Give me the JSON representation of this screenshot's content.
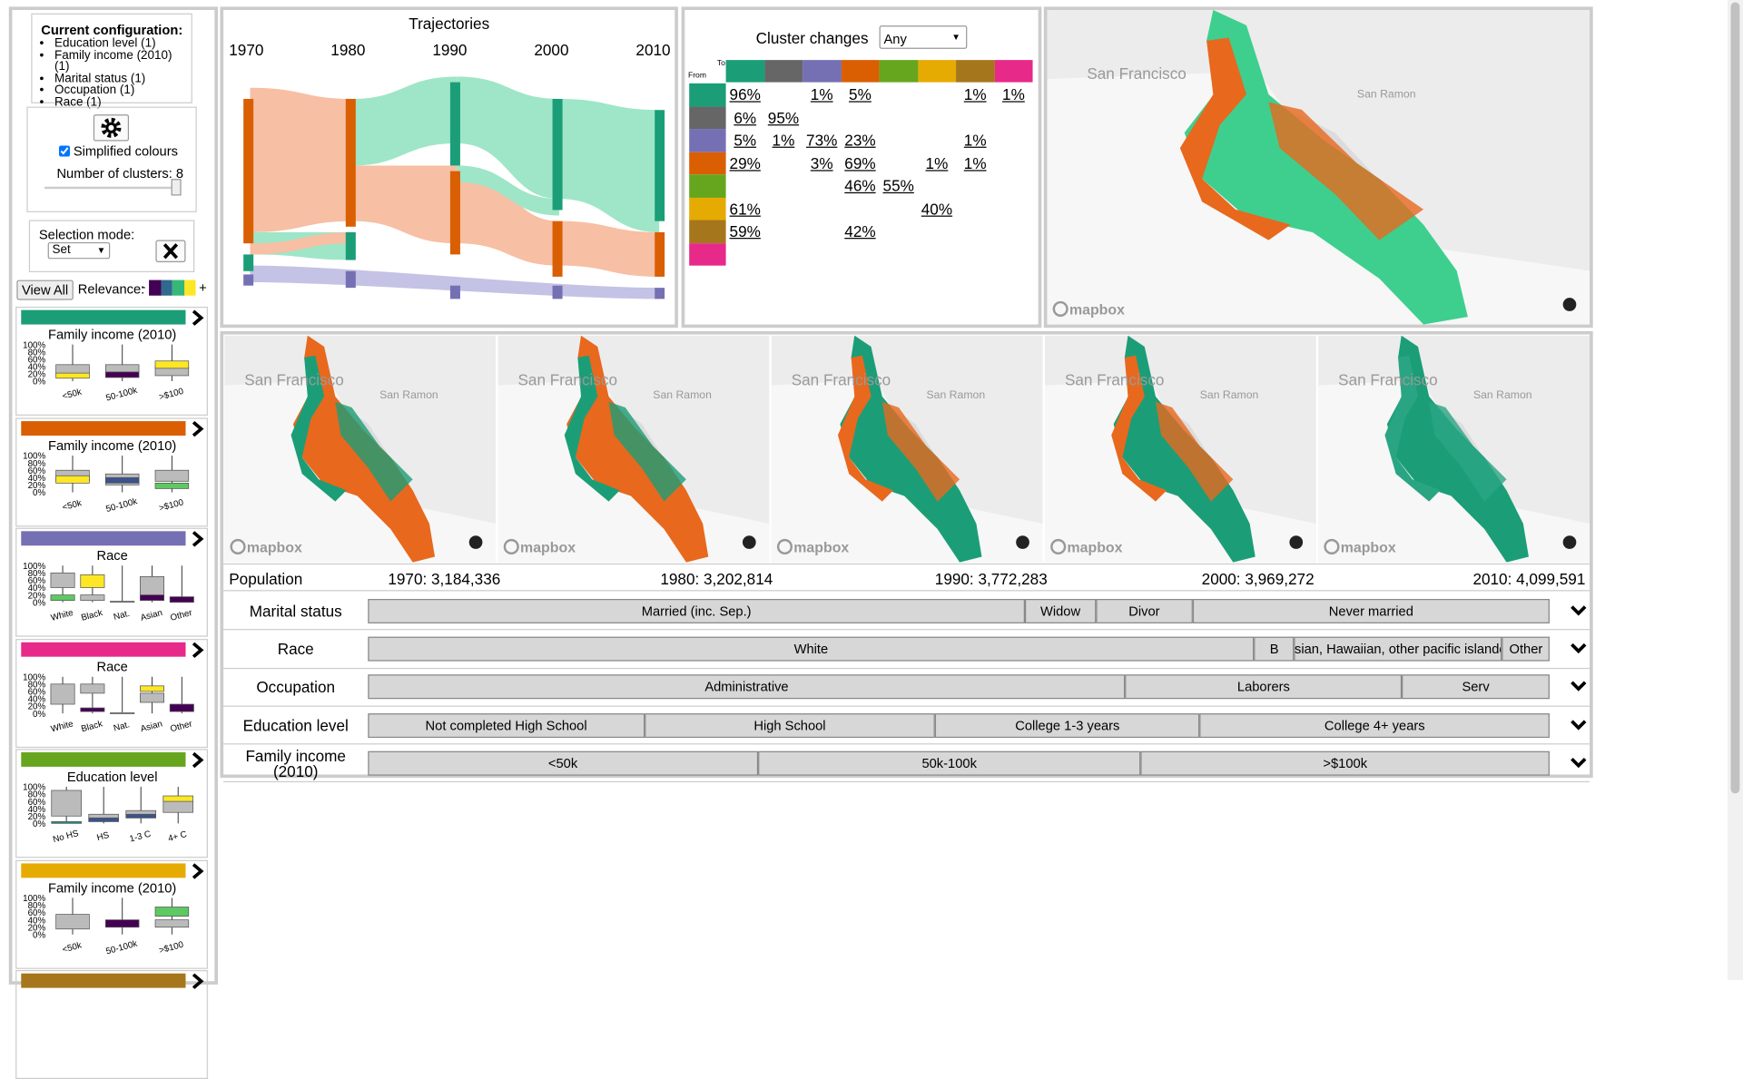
{
  "config": {
    "title": "Current configuration:",
    "items": [
      "Education level (1)",
      "Family income (2010) (1)",
      "Marital status (1)",
      "Occupation (1)",
      "Race (1)"
    ]
  },
  "settings": {
    "simplified": "Simplified colours",
    "clusters_label": "Number of clusters: 8"
  },
  "selection": {
    "label": "Selection mode:",
    "mode": "Set"
  },
  "view_all": "View All",
  "relevance": {
    "label": "Relevance:",
    "minus": "-",
    "plus": "+",
    "colors": [
      "#440154",
      "#31688e",
      "#35b779",
      "#fde725"
    ]
  },
  "plot_axis": [
    "100%",
    "80%",
    "60%",
    "40%",
    "20%",
    "0%"
  ],
  "plot_ylim": [
    0,
    100
  ],
  "clusters": [
    {
      "color": "#1b9e77",
      "title": "Family income (2010)",
      "categories": [
        "<50k",
        "50-100k",
        ">$100"
      ],
      "boxes": [
        [
          {
            "low": 20,
            "high": 45,
            "color": "#bbbbbb"
          },
          {
            "low": 8,
            "high": 22,
            "color": "#fde725"
          }
        ],
        [
          {
            "low": 25,
            "high": 45,
            "color": "#bbbbbb"
          },
          {
            "low": 10,
            "high": 25,
            "color": "#440154"
          }
        ],
        [
          {
            "low": 15,
            "high": 40,
            "color": "#bbbbbb"
          },
          {
            "low": 35,
            "high": 55,
            "color": "#fde725"
          }
        ]
      ]
    },
    {
      "color": "#d95f02",
      "title": "Family income (2010)",
      "categories": [
        "<50k",
        "50-100k",
        ">$100"
      ],
      "boxes": [
        [
          {
            "low": 30,
            "high": 60,
            "color": "#bbbbbb"
          },
          {
            "low": 25,
            "high": 45,
            "color": "#fde725"
          }
        ],
        [
          {
            "low": 20,
            "high": 50,
            "color": "#bbbbbb"
          },
          {
            "low": 25,
            "high": 40,
            "color": "#3b528b"
          }
        ],
        [
          {
            "low": 30,
            "high": 60,
            "color": "#bbbbbb"
          },
          {
            "low": 10,
            "high": 25,
            "color": "#5ec962"
          }
        ]
      ]
    },
    {
      "color": "#7570b3",
      "title": "Race",
      "categories": [
        "White",
        "Black",
        "Nat.",
        "Asian",
        "Other"
      ],
      "boxes": [
        [
          {
            "low": 40,
            "high": 80,
            "color": "#bbbbbb"
          },
          {
            "low": 5,
            "high": 20,
            "color": "#5ec962"
          }
        ],
        [
          {
            "low": 5,
            "high": 20,
            "color": "#bbbbbb"
          },
          {
            "low": 40,
            "high": 75,
            "color": "#fde725"
          }
        ],
        [
          {
            "low": 0,
            "high": 3,
            "color": "#bbbbbb"
          }
        ],
        [
          {
            "low": 10,
            "high": 70,
            "color": "#bbbbbb"
          },
          {
            "low": 5,
            "high": 20,
            "color": "#440154"
          }
        ],
        [
          {
            "low": 0,
            "high": 15,
            "color": "#440154"
          }
        ]
      ]
    },
    {
      "color": "#e7298a",
      "title": "Race",
      "categories": [
        "White",
        "Black",
        "Nat.",
        "Asian",
        "Other"
      ],
      "boxes": [
        [
          {
            "low": 25,
            "high": 80,
            "color": "#bbbbbb"
          }
        ],
        [
          {
            "low": 55,
            "high": 80,
            "color": "#bbbbbb"
          },
          {
            "low": 5,
            "high": 15,
            "color": "#440154"
          }
        ],
        [
          {
            "low": 0,
            "high": 2,
            "color": "#bbbbbb"
          }
        ],
        [
          {
            "low": 30,
            "high": 55,
            "color": "#bbbbbb"
          },
          {
            "low": 60,
            "high": 75,
            "color": "#fde725"
          }
        ],
        [
          {
            "low": 5,
            "high": 25,
            "color": "#440154"
          }
        ]
      ]
    },
    {
      "color": "#66a61e",
      "title": "Education level",
      "categories": [
        "No HS",
        "HS",
        "1-3 C",
        "4+ C"
      ],
      "boxes": [
        [
          {
            "low": 20,
            "high": 90,
            "color": "#bbbbbb"
          },
          {
            "low": 0,
            "high": 5,
            "color": "#21918c"
          }
        ],
        [
          {
            "low": 5,
            "high": 25,
            "color": "#bbbbbb"
          },
          {
            "low": 5,
            "high": 15,
            "color": "#3b528b"
          }
        ],
        [
          {
            "low": 15,
            "high": 35,
            "color": "#bbbbbb"
          },
          {
            "low": 15,
            "high": 25,
            "color": "#3b528b"
          }
        ],
        [
          {
            "low": 30,
            "high": 70,
            "color": "#bbbbbb"
          },
          {
            "low": 60,
            "high": 75,
            "color": "#fde725"
          }
        ]
      ]
    },
    {
      "color": "#e6ab02",
      "title": "Family income (2010)",
      "categories": [
        "<50k",
        "50-100k",
        ">$100"
      ],
      "boxes": [
        [
          {
            "low": 15,
            "high": 55,
            "color": "#bbbbbb"
          }
        ],
        [
          {
            "low": 20,
            "high": 40,
            "color": "#440154"
          }
        ],
        [
          {
            "low": 20,
            "high": 40,
            "color": "#bbbbbb"
          },
          {
            "low": 50,
            "high": 75,
            "color": "#5ec962"
          }
        ]
      ]
    },
    {
      "color": "#a6761d"
    }
  ],
  "trajectories": {
    "title": "Trajectories",
    "years": [
      "1970",
      "1980",
      "1990",
      "2000",
      "2010"
    ]
  },
  "cluster_changes": {
    "title": "Cluster changes",
    "filter": "Any",
    "to": "To",
    "from": "From",
    "colors": [
      "#1b9e77",
      "#666666",
      "#7570b3",
      "#d95f02",
      "#66a61e",
      "#e6ab02",
      "#a6761d",
      "#e7298a"
    ],
    "rows": [
      [
        "96%",
        null,
        "1%",
        "5%",
        null,
        null,
        "1%",
        "1%"
      ],
      [
        "6%",
        "95%",
        null,
        null,
        null,
        null,
        null,
        null
      ],
      [
        "5%",
        "1%",
        "73%",
        "23%",
        null,
        null,
        "1%",
        null
      ],
      [
        "29%",
        null,
        "3%",
        "69%",
        null,
        "1%",
        "1%",
        null
      ],
      [
        null,
        null,
        null,
        "46%",
        "55%",
        null,
        null,
        null
      ],
      [
        "61%",
        null,
        null,
        null,
        null,
        "40%",
        null,
        null
      ],
      [
        "59%",
        null,
        null,
        "42%",
        null,
        null,
        null,
        null
      ],
      [
        null,
        null,
        null,
        null,
        null,
        null,
        null,
        null
      ]
    ]
  },
  "maps": {
    "labels": [
      "San Francisco",
      "San Ramon"
    ],
    "logo": "mapbox",
    "panels": [
      {
        "base": "#e8681e",
        "patch": "#1b9e77"
      },
      {
        "base": "#e8681e",
        "patch": "#1b9e77"
      },
      {
        "base": "#1b9e77",
        "patch": "#e8681e"
      },
      {
        "base": "#1b9e77",
        "patch": "#e8681e"
      },
      {
        "base": "#1b9e77",
        "patch": "#2aa583"
      }
    ],
    "overview": {
      "base": "#3ecf8e",
      "patch": "#e8681e"
    }
  },
  "population": {
    "label": "Population",
    "years": [
      "1970: 3,184,336",
      "1980: 3,202,814",
      "1990: 3,772,283",
      "2000: 3,969,272",
      "2010: 4,099,591"
    ]
  },
  "attributes": [
    {
      "name": "Marital status",
      "segments": [
        {
          "label": "Married (inc. Sep.)",
          "share": 55.6
        },
        {
          "label": "Widow",
          "share": 6
        },
        {
          "label": "Divor",
          "share": 8.2
        },
        {
          "label": "Never married",
          "share": 30.2
        }
      ]
    },
    {
      "name": "Race",
      "segments": [
        {
          "label": "White",
          "share": 75
        },
        {
          "label": "B",
          "share": 3.4
        },
        {
          "label": "Asian, Hawaiian, other pacific islander",
          "share": 17.6
        },
        {
          "label": "Other",
          "share": 4
        }
      ]
    },
    {
      "name": "Occupation",
      "segments": [
        {
          "label": "Administrative",
          "share": 64.1
        },
        {
          "label": "Laborers",
          "share": 23.4
        },
        {
          "label": "Serv",
          "share": 12.5
        }
      ]
    },
    {
      "name": "Education level",
      "segments": [
        {
          "label": "Not completed High School",
          "share": 23.4
        },
        {
          "label": "High School",
          "share": 24.6
        },
        {
          "label": "College 1-3 years",
          "share": 22.4
        },
        {
          "label": "College 4+ years",
          "share": 29.6
        }
      ]
    },
    {
      "name": "Family income (2010)",
      "segments": [
        {
          "label": "<50k",
          "share": 33
        },
        {
          "label": "50k-100k",
          "share": 32.4
        },
        {
          "label": ">$100k",
          "share": 34.6
        }
      ]
    }
  ]
}
